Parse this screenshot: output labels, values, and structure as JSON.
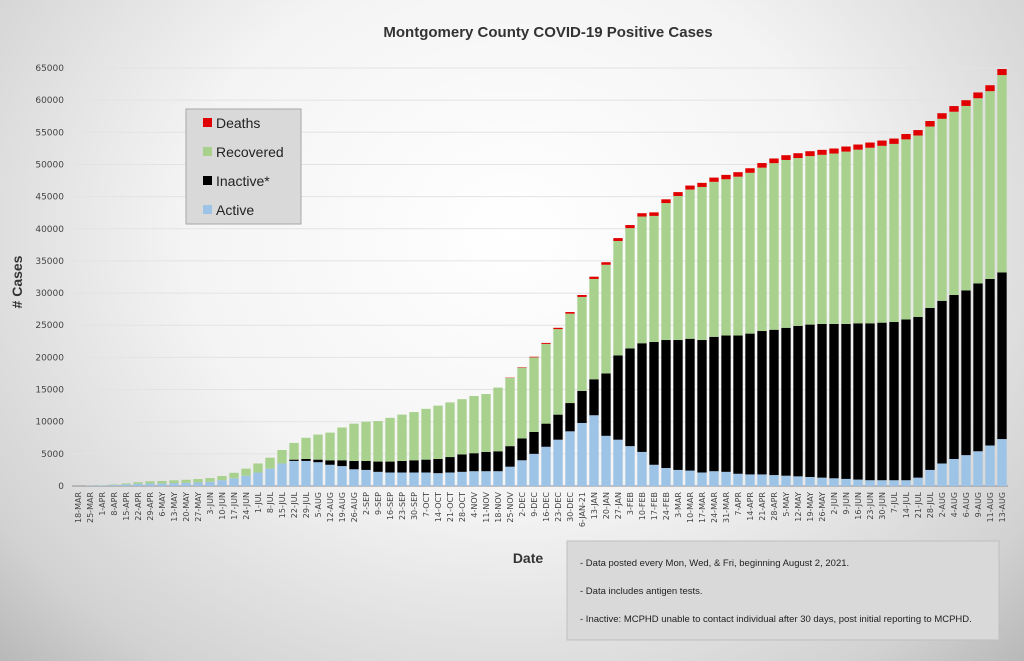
{
  "chart_data": {
    "type": "bar",
    "stacked": true,
    "title": "Montgomery County COVID-19 Positive Cases",
    "xlabel": "Date",
    "ylabel": "# Cases",
    "ylim": [
      0,
      65000
    ],
    "yticks": [
      0,
      5000,
      10000,
      15000,
      20000,
      25000,
      30000,
      35000,
      40000,
      45000,
      50000,
      55000,
      60000,
      65000
    ],
    "legend_position": "upper-left",
    "grid": true,
    "categories": [
      "18-MAR",
      "25-MAR",
      "1-APR",
      "8-APR",
      "15-APR",
      "22-APR",
      "29-APR",
      "6-MAY",
      "13-MAY",
      "20-MAY",
      "27-MAY",
      "3-JUN",
      "10-JUN",
      "17-JUN",
      "24-JUN",
      "1-JUL",
      "8-JUL",
      "15-JUL",
      "22-JUL",
      "29-JUL",
      "5-AUG",
      "12-AUG",
      "19-AUG",
      "26-AUG",
      "2-SEP",
      "9-SEP",
      "16-SEP",
      "23-SEP",
      "30-SEP",
      "7-OCT",
      "14-OCT",
      "21-OCT",
      "28-OCT",
      "4-NOV",
      "11-NOV",
      "18-NOV",
      "25-NOV",
      "2-DEC",
      "9-DEC",
      "16-DEC",
      "23-DEC",
      "30-DEC",
      "6-JAN-21",
      "13-JAN",
      "20-JAN",
      "27-JAN",
      "3-FEB",
      "10-FEB",
      "17-FEB",
      "24-FEB",
      "3-MAR",
      "10-MAR",
      "17-MAR",
      "24-MAR",
      "31-MAR",
      "7-APR",
      "14-APR",
      "21-APR",
      "28-APR",
      "5-MAY",
      "12-MAY",
      "19-MAY",
      "26-MAY",
      "2-JUN",
      "9-JUN",
      "16-JUN",
      "23-JUN",
      "30-JUN",
      "7-JUL",
      "14-JUL",
      "21-JUL",
      "28-JUL",
      "2-AUG",
      "4-AUG",
      "6-AUG",
      "9-AUG",
      "11-AUG",
      "13-AUG"
    ],
    "series": [
      {
        "name": "Active",
        "color": "#9dc3e6",
        "values": [
          10,
          50,
          80,
          150,
          250,
          350,
          400,
          400,
          450,
          500,
          550,
          650,
          900,
          1200,
          1600,
          2100,
          2700,
          3500,
          3900,
          3900,
          3700,
          3300,
          3100,
          2600,
          2500,
          2200,
          2100,
          2100,
          2100,
          2100,
          2000,
          2100,
          2200,
          2300,
          2300,
          2300,
          3000,
          4000,
          5000,
          6100,
          7200,
          8500,
          9800,
          11000,
          7800,
          7200,
          6200,
          5300,
          3300,
          2800,
          2500,
          2400,
          2100,
          2300,
          2200,
          1900,
          1800,
          1800,
          1700,
          1600,
          1500,
          1400,
          1300,
          1200,
          1100,
          1000,
          900,
          900,
          900,
          900,
          1300,
          2500,
          3500,
          4200,
          4800,
          5400,
          6300,
          7300
        ]
      },
      {
        "name": "Inactive*",
        "color": "#000000",
        "values": [
          0,
          0,
          0,
          0,
          0,
          0,
          0,
          0,
          0,
          0,
          0,
          0,
          0,
          0,
          0,
          0,
          0,
          0,
          200,
          300,
          400,
          700,
          900,
          1300,
          1400,
          1600,
          1700,
          1800,
          1900,
          2000,
          2200,
          2400,
          2700,
          2800,
          3000,
          3100,
          3200,
          3400,
          3400,
          3600,
          3900,
          4400,
          5000,
          5600,
          9700,
          13100,
          15200,
          16900,
          19100,
          19900,
          20200,
          20500,
          20600,
          20900,
          21200,
          21500,
          21900,
          22300,
          22600,
          23000,
          23400,
          23700,
          23900,
          24000,
          24100,
          24300,
          24400,
          24500,
          24600,
          25000,
          25000,
          25200,
          25300,
          25500,
          25600,
          26100,
          25900,
          25900
        ]
      },
      {
        "name": "Recovered",
        "color": "#a9d18e",
        "values": [
          0,
          0,
          30,
          80,
          150,
          250,
          330,
          380,
          430,
          470,
          530,
          580,
          650,
          850,
          1100,
          1400,
          1700,
          2100,
          2600,
          3300,
          3900,
          4300,
          5100,
          5800,
          6100,
          6300,
          6800,
          7200,
          7500,
          7900,
          8300,
          8500,
          8600,
          8900,
          9000,
          9900,
          10600,
          11000,
          11600,
          12400,
          13300,
          13900,
          14600,
          15600,
          16900,
          17800,
          18700,
          19700,
          19600,
          21300,
          22400,
          23200,
          23800,
          24100,
          24300,
          24700,
          25000,
          25400,
          25900,
          26100,
          26100,
          26200,
          26300,
          26500,
          26800,
          27000,
          27300,
          27500,
          27700,
          28000,
          28200,
          28200,
          28300,
          28500,
          28700,
          28800,
          29200,
          30700
        ]
      },
      {
        "name": "Deaths",
        "color": "#e00000",
        "values": [
          0,
          0,
          0,
          0,
          0,
          0,
          0,
          0,
          0,
          0,
          0,
          0,
          0,
          0,
          0,
          0,
          0,
          0,
          0,
          0,
          0,
          0,
          0,
          0,
          0,
          0,
          0,
          0,
          0,
          0,
          0,
          0,
          0,
          0,
          0,
          0,
          50,
          70,
          100,
          150,
          200,
          250,
          300,
          350,
          400,
          450,
          480,
          520,
          550,
          580,
          600,
          620,
          640,
          660,
          680,
          700,
          710,
          720,
          730,
          740,
          750,
          760,
          770,
          780,
          790,
          800,
          810,
          820,
          830,
          840,
          850,
          860,
          870,
          880,
          890,
          900,
          920,
          940
        ]
      }
    ]
  },
  "legend": {
    "items": [
      {
        "label": "Deaths",
        "color": "#e00000"
      },
      {
        "label": "Recovered",
        "color": "#a9d18e"
      },
      {
        "label": "Inactive*",
        "color": "#000000"
      },
      {
        "label": "Active",
        "color": "#9dc3e6"
      }
    ]
  },
  "notes": [
    "- Data posted every Mon, Wed, & Fri, beginning August 2, 2021.",
    "- Data includes antigen tests.",
    "- Inactive: MCPHD unable to contact individual after 30 days, post initial reporting to MCPHD."
  ]
}
